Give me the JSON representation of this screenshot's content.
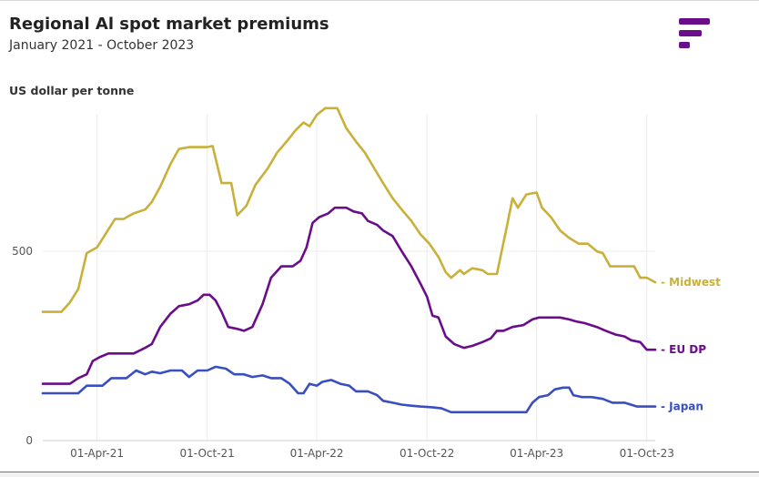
{
  "header": {
    "title": "Regional Al spot market premiums",
    "subtitle": "January 2021 - October 2023"
  },
  "colors": {
    "logo": "#6a0d8a"
  },
  "chart_data": {
    "type": "line",
    "title": "Regional Al spot market premiums",
    "subtitle": "January 2021 - October 2023",
    "ylabel": "US dollar per tonne",
    "xlabel": "",
    "ylim": [
      0,
      875
    ],
    "xlim": [
      "2021-01-01",
      "2023-10-15"
    ],
    "y_ticks": [
      {
        "value": 0,
        "label": "0"
      },
      {
        "value": 500,
        "label": "500"
      }
    ],
    "x_ticks": [
      {
        "date": "2021-04-01",
        "label": "01-Apr-21"
      },
      {
        "date": "2021-10-01",
        "label": "01-Oct-21"
      },
      {
        "date": "2022-04-01",
        "label": "01-Apr-22"
      },
      {
        "date": "2022-10-01",
        "label": "01-Oct-22"
      },
      {
        "date": "2023-04-01",
        "label": "01-Apr-23"
      },
      {
        "date": "2023-10-01",
        "label": "01-Oct-23"
      }
    ],
    "grid": true,
    "legend": "right, end-of-line labels",
    "series": [
      {
        "name": "Midwest",
        "label": "- Midwest",
        "color": "#c9b03a",
        "points": [
          [
            "2021-01-01",
            340
          ],
          [
            "2021-02-01",
            340
          ],
          [
            "2021-02-15",
            365
          ],
          [
            "2021-03-01",
            400
          ],
          [
            "2021-03-15",
            495
          ],
          [
            "2021-04-01",
            510
          ],
          [
            "2021-04-15",
            545
          ],
          [
            "2021-05-01",
            585
          ],
          [
            "2021-05-15",
            585
          ],
          [
            "2021-06-01",
            600
          ],
          [
            "2021-06-20",
            610
          ],
          [
            "2021-07-01",
            630
          ],
          [
            "2021-07-15",
            670
          ],
          [
            "2021-08-01",
            730
          ],
          [
            "2021-08-15",
            770
          ],
          [
            "2021-09-01",
            775
          ],
          [
            "2021-10-01",
            775
          ],
          [
            "2021-10-10",
            778
          ],
          [
            "2021-10-25",
            680
          ],
          [
            "2021-11-10",
            680
          ],
          [
            "2021-11-20",
            595
          ],
          [
            "2021-12-05",
            620
          ],
          [
            "2021-12-20",
            675
          ],
          [
            "2022-01-10",
            720
          ],
          [
            "2022-01-25",
            760
          ],
          [
            "2022-02-10",
            790
          ],
          [
            "2022-02-25",
            820
          ],
          [
            "2022-03-10",
            840
          ],
          [
            "2022-03-20",
            830
          ],
          [
            "2022-04-01",
            860
          ],
          [
            "2022-04-15",
            878
          ],
          [
            "2022-05-05",
            878
          ],
          [
            "2022-05-20",
            825
          ],
          [
            "2022-06-05",
            790
          ],
          [
            "2022-06-20",
            760
          ],
          [
            "2022-07-05",
            720
          ],
          [
            "2022-07-20",
            680
          ],
          [
            "2022-08-05",
            640
          ],
          [
            "2022-08-20",
            610
          ],
          [
            "2022-09-05",
            580
          ],
          [
            "2022-09-20",
            545
          ],
          [
            "2022-10-05",
            520
          ],
          [
            "2022-10-20",
            485
          ],
          [
            "2022-11-01",
            445
          ],
          [
            "2022-11-10",
            430
          ],
          [
            "2022-11-25",
            450
          ],
          [
            "2022-12-01",
            440
          ],
          [
            "2022-12-15",
            455
          ],
          [
            "2023-01-01",
            450
          ],
          [
            "2023-01-10",
            440
          ],
          [
            "2023-01-25",
            440
          ],
          [
            "2023-02-10",
            560
          ],
          [
            "2023-02-20",
            640
          ],
          [
            "2023-03-01",
            615
          ],
          [
            "2023-03-15",
            650
          ],
          [
            "2023-04-01",
            655
          ],
          [
            "2023-04-10",
            615
          ],
          [
            "2023-04-25",
            590
          ],
          [
            "2023-05-10",
            555
          ],
          [
            "2023-05-25",
            535
          ],
          [
            "2023-06-10",
            520
          ],
          [
            "2023-06-25",
            520
          ],
          [
            "2023-07-10",
            500
          ],
          [
            "2023-07-20",
            495
          ],
          [
            "2023-08-01",
            460
          ],
          [
            "2023-08-20",
            460
          ],
          [
            "2023-09-10",
            460
          ],
          [
            "2023-09-20",
            430
          ],
          [
            "2023-10-01",
            430
          ],
          [
            "2023-10-15",
            418
          ]
        ]
      },
      {
        "name": "EU DP",
        "label": "- EU DP",
        "color": "#6a0d8a",
        "points": [
          [
            "2021-01-01",
            150
          ],
          [
            "2021-02-15",
            150
          ],
          [
            "2021-03-01",
            165
          ],
          [
            "2021-03-15",
            175
          ],
          [
            "2021-03-25",
            210
          ],
          [
            "2021-04-05",
            220
          ],
          [
            "2021-04-20",
            230
          ],
          [
            "2021-05-10",
            230
          ],
          [
            "2021-06-01",
            230
          ],
          [
            "2021-06-20",
            245
          ],
          [
            "2021-07-01",
            255
          ],
          [
            "2021-07-15",
            300
          ],
          [
            "2021-08-01",
            335
          ],
          [
            "2021-08-15",
            355
          ],
          [
            "2021-09-01",
            360
          ],
          [
            "2021-09-15",
            370
          ],
          [
            "2021-09-25",
            385
          ],
          [
            "2021-10-05",
            385
          ],
          [
            "2021-10-15",
            370
          ],
          [
            "2021-10-25",
            340
          ],
          [
            "2021-11-05",
            300
          ],
          [
            "2021-11-20",
            295
          ],
          [
            "2021-12-01",
            290
          ],
          [
            "2021-12-15",
            300
          ],
          [
            "2022-01-01",
            360
          ],
          [
            "2022-01-15",
            430
          ],
          [
            "2022-02-01",
            460
          ],
          [
            "2022-02-20",
            460
          ],
          [
            "2022-03-05",
            475
          ],
          [
            "2022-03-15",
            510
          ],
          [
            "2022-03-25",
            575
          ],
          [
            "2022-04-05",
            590
          ],
          [
            "2022-04-20",
            600
          ],
          [
            "2022-05-01",
            615
          ],
          [
            "2022-05-20",
            615
          ],
          [
            "2022-06-01",
            605
          ],
          [
            "2022-06-15",
            600
          ],
          [
            "2022-06-25",
            580
          ],
          [
            "2022-07-10",
            570
          ],
          [
            "2022-07-20",
            555
          ],
          [
            "2022-08-05",
            540
          ],
          [
            "2022-08-20",
            500
          ],
          [
            "2022-09-05",
            460
          ],
          [
            "2022-09-20",
            415
          ],
          [
            "2022-10-01",
            380
          ],
          [
            "2022-10-10",
            330
          ],
          [
            "2022-10-20",
            325
          ],
          [
            "2022-11-01",
            275
          ],
          [
            "2022-11-15",
            255
          ],
          [
            "2022-12-01",
            245
          ],
          [
            "2022-12-15",
            250
          ],
          [
            "2023-01-01",
            260
          ],
          [
            "2023-01-15",
            270
          ],
          [
            "2023-01-25",
            290
          ],
          [
            "2023-02-05",
            290
          ],
          [
            "2023-02-20",
            300
          ],
          [
            "2023-03-10",
            305
          ],
          [
            "2023-03-25",
            320
          ],
          [
            "2023-04-05",
            325
          ],
          [
            "2023-04-20",
            325
          ],
          [
            "2023-05-10",
            325
          ],
          [
            "2023-05-25",
            320
          ],
          [
            "2023-06-05",
            315
          ],
          [
            "2023-06-20",
            310
          ],
          [
            "2023-07-10",
            300
          ],
          [
            "2023-07-25",
            290
          ],
          [
            "2023-08-10",
            280
          ],
          [
            "2023-08-25",
            275
          ],
          [
            "2023-09-05",
            265
          ],
          [
            "2023-09-20",
            260
          ],
          [
            "2023-10-01",
            240
          ],
          [
            "2023-10-15",
            240
          ]
        ]
      },
      {
        "name": "Japan",
        "label": "- Japan",
        "color": "#3a4fbf",
        "points": [
          [
            "2021-01-01",
            125
          ],
          [
            "2021-03-01",
            125
          ],
          [
            "2021-03-15",
            145
          ],
          [
            "2021-04-10",
            145
          ],
          [
            "2021-04-25",
            165
          ],
          [
            "2021-05-20",
            165
          ],
          [
            "2021-06-05",
            185
          ],
          [
            "2021-06-20",
            175
          ],
          [
            "2021-07-01",
            182
          ],
          [
            "2021-07-15",
            178
          ],
          [
            "2021-08-01",
            185
          ],
          [
            "2021-08-20",
            185
          ],
          [
            "2021-09-01",
            168
          ],
          [
            "2021-09-15",
            185
          ],
          [
            "2021-10-01",
            185
          ],
          [
            "2021-10-15",
            195
          ],
          [
            "2021-11-01",
            190
          ],
          [
            "2021-11-15",
            175
          ],
          [
            "2021-12-01",
            175
          ],
          [
            "2021-12-15",
            168
          ],
          [
            "2022-01-01",
            172
          ],
          [
            "2022-01-15",
            165
          ],
          [
            "2022-02-01",
            165
          ],
          [
            "2022-02-15",
            150
          ],
          [
            "2022-03-01",
            125
          ],
          [
            "2022-03-10",
            125
          ],
          [
            "2022-03-20",
            150
          ],
          [
            "2022-04-01",
            145
          ],
          [
            "2022-04-10",
            155
          ],
          [
            "2022-04-25",
            160
          ],
          [
            "2022-05-10",
            150
          ],
          [
            "2022-05-25",
            145
          ],
          [
            "2022-06-05",
            130
          ],
          [
            "2022-06-25",
            130
          ],
          [
            "2022-07-10",
            120
          ],
          [
            "2022-07-20",
            105
          ],
          [
            "2022-08-05",
            100
          ],
          [
            "2022-08-20",
            95
          ],
          [
            "2022-09-05",
            92
          ],
          [
            "2022-09-20",
            90
          ],
          [
            "2022-10-10",
            88
          ],
          [
            "2022-10-25",
            85
          ],
          [
            "2022-11-10",
            75
          ],
          [
            "2022-12-01",
            75
          ],
          [
            "2023-01-01",
            75
          ],
          [
            "2023-02-01",
            75
          ],
          [
            "2023-03-01",
            75
          ],
          [
            "2023-03-15",
            75
          ],
          [
            "2023-03-25",
            100
          ],
          [
            "2023-04-05",
            115
          ],
          [
            "2023-04-20",
            120
          ],
          [
            "2023-05-01",
            135
          ],
          [
            "2023-05-15",
            140
          ],
          [
            "2023-05-25",
            140
          ],
          [
            "2023-06-01",
            120
          ],
          [
            "2023-06-15",
            115
          ],
          [
            "2023-07-01",
            115
          ],
          [
            "2023-07-20",
            110
          ],
          [
            "2023-08-05",
            100
          ],
          [
            "2023-08-25",
            100
          ],
          [
            "2023-09-15",
            90
          ],
          [
            "2023-10-15",
            90
          ]
        ]
      }
    ]
  }
}
